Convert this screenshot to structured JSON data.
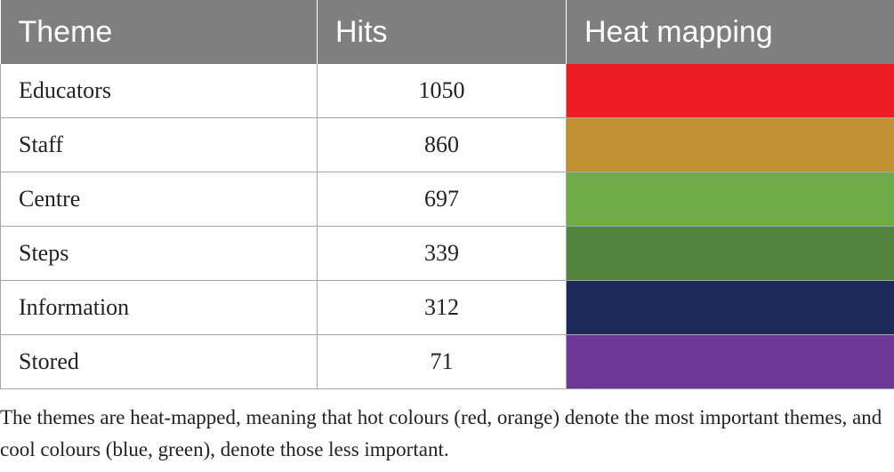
{
  "table": {
    "headers": [
      "Theme",
      "Hits",
      "Heat mapping"
    ],
    "rows": [
      {
        "theme": "Educators",
        "hits": "1050",
        "color": "#ec1c24"
      },
      {
        "theme": "Staff",
        "hits": "860",
        "color": "#bf9130"
      },
      {
        "theme": "Centre",
        "hits": "697",
        "color": "#6fac47"
      },
      {
        "theme": "Steps",
        "hits": "339",
        "color": "#53843d"
      },
      {
        "theme": "Information",
        "hits": "312",
        "color": "#1c2a5b"
      },
      {
        "theme": "Stored",
        "hits": "71",
        "color": "#6e3897"
      }
    ]
  },
  "footnote": "The themes are heat-mapped, meaning that hot colours (red, orange) denote the most important themes, and cool colours (blue, green), denote those less important."
}
